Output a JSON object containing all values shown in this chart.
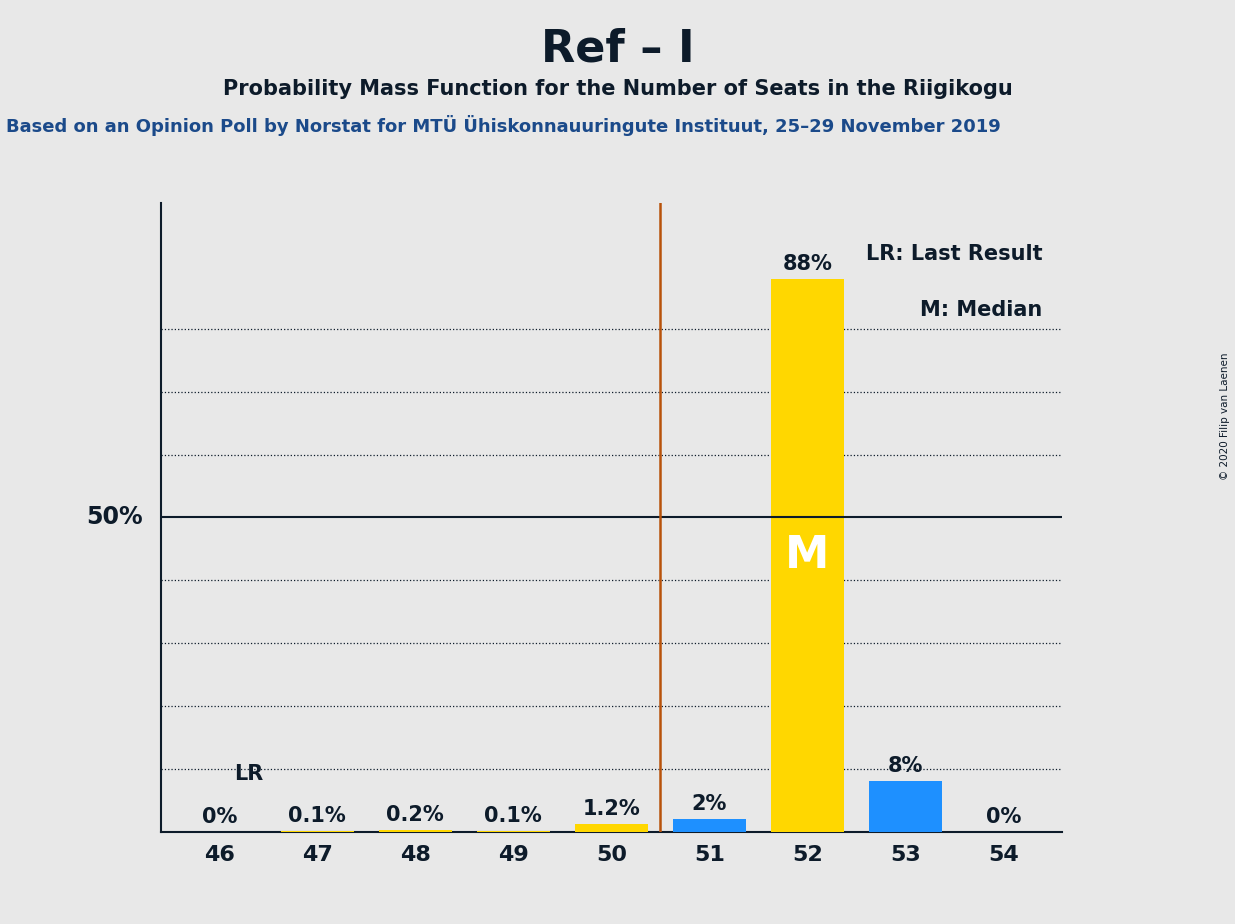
{
  "title": "Ref – I",
  "subtitle": "Probability Mass Function for the Number of Seats in the Riigikogu",
  "source": "Based on an Opinion Poll by Norstat for MTÜ Ühiskonnauuringute Instituut, 25–29 November 2019",
  "copyright": "© 2020 Filip van Laenen",
  "seats": [
    46,
    47,
    48,
    49,
    50,
    51,
    52,
    53,
    54
  ],
  "probabilities": [
    0.0,
    0.1,
    0.2,
    0.1,
    1.2,
    2.0,
    88.0,
    8.0,
    0.0
  ],
  "prob_labels": [
    "0%",
    "0.1%",
    "0.2%",
    "0.1%",
    "1.2%",
    "2%",
    "88%",
    "8%",
    "0%"
  ],
  "bar_colors": [
    "#FFD700",
    "#FFD700",
    "#FFD700",
    "#FFD700",
    "#FFD700",
    "#1E90FF",
    "#FFD700",
    "#1E90FF",
    "#FFD700"
  ],
  "lr_line_x": 50.5,
  "lr_line_color": "#B8520A",
  "median_seat": 52,
  "median_label": "M",
  "lr_label": "LR",
  "legend_lr": "LR: Last Result",
  "legend_m": "M: Median",
  "fifty_pct_label": "50%",
  "y_dotted_lines": [
    10,
    20,
    30,
    40,
    60,
    70,
    80
  ],
  "background_color": "#E8E8E8",
  "bar_width": 0.75,
  "ylim": [
    0,
    100
  ],
  "xlim": [
    45.4,
    54.6
  ],
  "text_color": "#0D1B2A",
  "title_fontsize": 32,
  "subtitle_fontsize": 15,
  "source_fontsize": 13,
  "label_fontsize": 15,
  "tick_fontsize": 16
}
